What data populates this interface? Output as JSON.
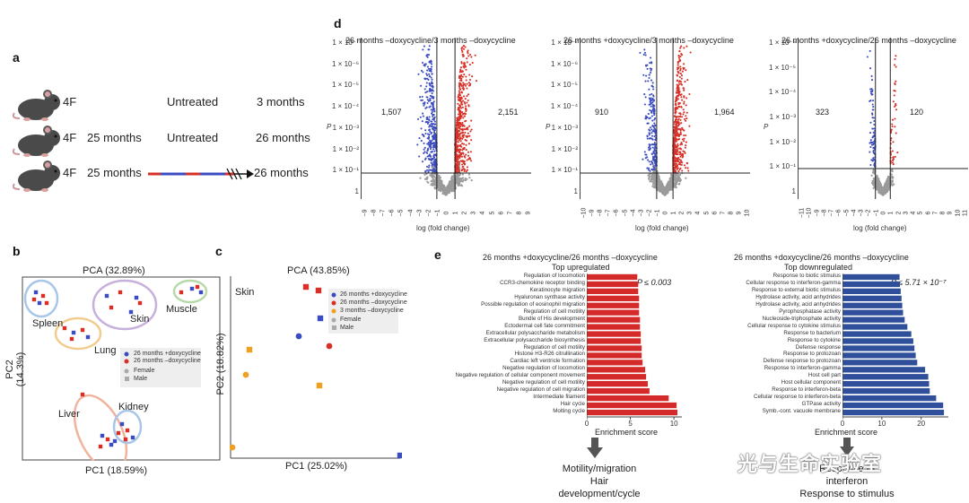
{
  "panels": {
    "a": "a",
    "b": "b",
    "c": "c",
    "d": "d",
    "e": "e"
  },
  "a": {
    "rows": [
      {
        "genotype": "4F",
        "age": "",
        "treatment": "Untreated",
        "end": "3 months"
      },
      {
        "genotype": "4F",
        "age": "25 months",
        "treatment": "Untreated",
        "end": "26 months"
      },
      {
        "genotype": "4F",
        "age": "25 months",
        "treatment": "",
        "end": "26 months"
      }
    ]
  },
  "b": {
    "title": "PCA (32.89%)",
    "xlabel": "PC1 (18.59%)",
    "ylabel": "PC2 (14.3%)",
    "tissues": [
      "Spleen",
      "Skin",
      "Muscle",
      "Lung",
      "Liver",
      "Kidney"
    ],
    "legend": [
      "26 months +doxycycline",
      "26 months –doxycycline",
      "Female",
      "Male"
    ]
  },
  "c": {
    "title": "PCA (43.85%)",
    "xlabel": "PC1 (25.02%)",
    "ylabel": "PC2 (18.82%)",
    "tissue": "Skin",
    "legend": [
      "26 months +doxycycline",
      "26 months –doxycycline",
      "3 months –doxycycline",
      "Female",
      "Male"
    ]
  },
  "d": {
    "ylabel": "P",
    "xlabel": "log (fold change)",
    "ytick_labels": [
      "1 × 10⁻⁷",
      "1 × 10⁻⁶",
      "1 × 10⁻⁵",
      "1 × 10⁻⁴",
      "1 × 10⁻³",
      "1 × 10⁻²",
      "1 × 10⁻¹",
      "1"
    ],
    "plots": [
      {
        "title": "26 months –doxycycline/3 months –doxycycline",
        "down": "1,507",
        "up": "2,151",
        "xticks": [
          "−9",
          "−8",
          "−7",
          "−6",
          "−5",
          "−4",
          "−3",
          "−2",
          "−1",
          "0",
          "1",
          "2",
          "3",
          "4",
          "5",
          "6",
          "7",
          "8",
          "9"
        ]
      },
      {
        "title": "26 months +doxycycline/3 months –doxycycline",
        "down": "910",
        "up": "1,964",
        "xticks": [
          "−10",
          "−9",
          "−8",
          "−7",
          "−6",
          "−5",
          "−4",
          "−3",
          "−2",
          "−1",
          "0",
          "1",
          "2",
          "3",
          "4",
          "5",
          "6",
          "7",
          "8",
          "9",
          "10"
        ]
      },
      {
        "title": "26 months +doxycycline/26 months –doxycycline",
        "down": "323",
        "up": "120",
        "ytick_labels": [
          "1 × 10⁻⁶",
          "1 × 10⁻⁵",
          "1 × 10⁻⁴",
          "1 × 10⁻³",
          "1 × 10⁻²",
          "1 × 10⁻¹",
          "1"
        ],
        "xticks": [
          "−11",
          "−10",
          "−9",
          "−8",
          "−7",
          "−6",
          "−5",
          "−4",
          "−3",
          "−2",
          "−1",
          "0",
          "1",
          "2",
          "3",
          "4",
          "5",
          "6",
          "7",
          "8",
          "9",
          "10",
          "11"
        ]
      }
    ]
  },
  "e": {
    "title": "26 months +doxycycline/26 months –doxycycline",
    "up": {
      "subtitle": "Top upregulated",
      "pvalue": "P ≤ 0.003",
      "xlabel": "Enrichment score",
      "summary": [
        "Motility/migration",
        "Hair development/cycle"
      ]
    },
    "down": {
      "subtitle": "Top downregulated",
      "pvalue": "P ≤ 5.71 × 10⁻⁷",
      "xlabel": "Enrichment score",
      "summary": [
        "Response to interferon",
        "Response to stimulus"
      ]
    }
  },
  "chart_data": [
    {
      "type": "bar",
      "title": "Top upregulated",
      "xlabel": "Enrichment score",
      "xlim": [
        0,
        10.5
      ],
      "xticks": [
        0,
        5,
        10
      ],
      "categories": [
        "Regulation of locomotion",
        "CCR3-chemokine receptor binding",
        "Keratinocyte migration",
        "Hyaluronan synthase activity",
        "Possible regulation of eosinophil migration",
        "Regulation of cell motility",
        "Bundle of His development",
        "Ectodermal cell fate commitment",
        "Extracellular polysaccharide metabolism",
        "Extracellular polysaccharide biosynthesis",
        "Regulation of cell motility",
        "Histone H3-R26 citrullination",
        "Cardiac left ventricle formation",
        "Negative regulation of locomotion",
        "Negative regulation of cellular component movement",
        "Negative regulation of cell motility",
        "Negative regulation of cell migration",
        "Intermediate filament",
        "Hair cycle",
        "Molting cycle"
      ],
      "values": [
        5.8,
        5.9,
        5.9,
        6.0,
        6.0,
        6.0,
        6.1,
        6.1,
        6.2,
        6.2,
        6.3,
        6.3,
        6.4,
        6.7,
        6.8,
        7.0,
        7.2,
        9.4,
        10.3,
        10.4
      ]
    },
    {
      "type": "bar",
      "title": "Top downregulated",
      "xlabel": "Enrichment score",
      "xlim": [
        0,
        26
      ],
      "xticks": [
        0,
        10,
        20
      ],
      "categories": [
        "Response to biotic stimulus",
        "Cellular response to interferon-gamma",
        "Response to external biotic stimulus",
        "Hydrolase activity, acid anhydrides",
        "Hydrolase activity, acid anhydrides",
        "Pyrophosphatase activity",
        "Nucleoside-triphosphate activity",
        "Cellular response to cytokine stimulus",
        "Response to bacterium",
        "Response to cytokine",
        "Defense response",
        "Response to protozoan",
        "Defense response to protozoan",
        "Response to interferon-gamma",
        "Host cell part",
        "Host cellular component",
        "Response to interferon-beta",
        "Cellular response to interferon-beta",
        "GTPase activity",
        "Symb.-cont. vacuole membrane"
      ],
      "values": [
        14.5,
        14.6,
        14.8,
        15.0,
        15.2,
        15.4,
        15.8,
        16.5,
        17.5,
        18.0,
        18.3,
        18.6,
        19.0,
        21.0,
        21.8,
        22.0,
        22.2,
        23.8,
        25.6,
        25.8
      ]
    },
    {
      "type": "scatter",
      "title": "26 months –doxycycline/3 months –doxycycline",
      "xlabel": "log (fold change)",
      "ylabel": "P",
      "xlim": [
        -9,
        9
      ],
      "series": [
        {
          "name": "down",
          "count": "1,507"
        },
        {
          "name": "up",
          "count": "2,151"
        }
      ]
    },
    {
      "type": "scatter",
      "title": "26 months +doxycycline/3 months –doxycycline",
      "xlabel": "log (fold change)",
      "ylabel": "P",
      "xlim": [
        -10,
        10
      ],
      "series": [
        {
          "name": "down",
          "count": "910"
        },
        {
          "name": "up",
          "count": "1,964"
        }
      ]
    },
    {
      "type": "scatter",
      "title": "26 months +doxycycline/26 months –doxycycline",
      "xlabel": "log (fold change)",
      "ylabel": "P",
      "xlim": [
        -11,
        11
      ],
      "series": [
        {
          "name": "down",
          "count": "323"
        },
        {
          "name": "up",
          "count": "120"
        }
      ]
    }
  ],
  "watermark": "光与生命实验室",
  "colors": {
    "red": "#d73027",
    "blue": "#3b4cc0",
    "orange": "#f0a020",
    "grey": "#9a9a9a"
  }
}
